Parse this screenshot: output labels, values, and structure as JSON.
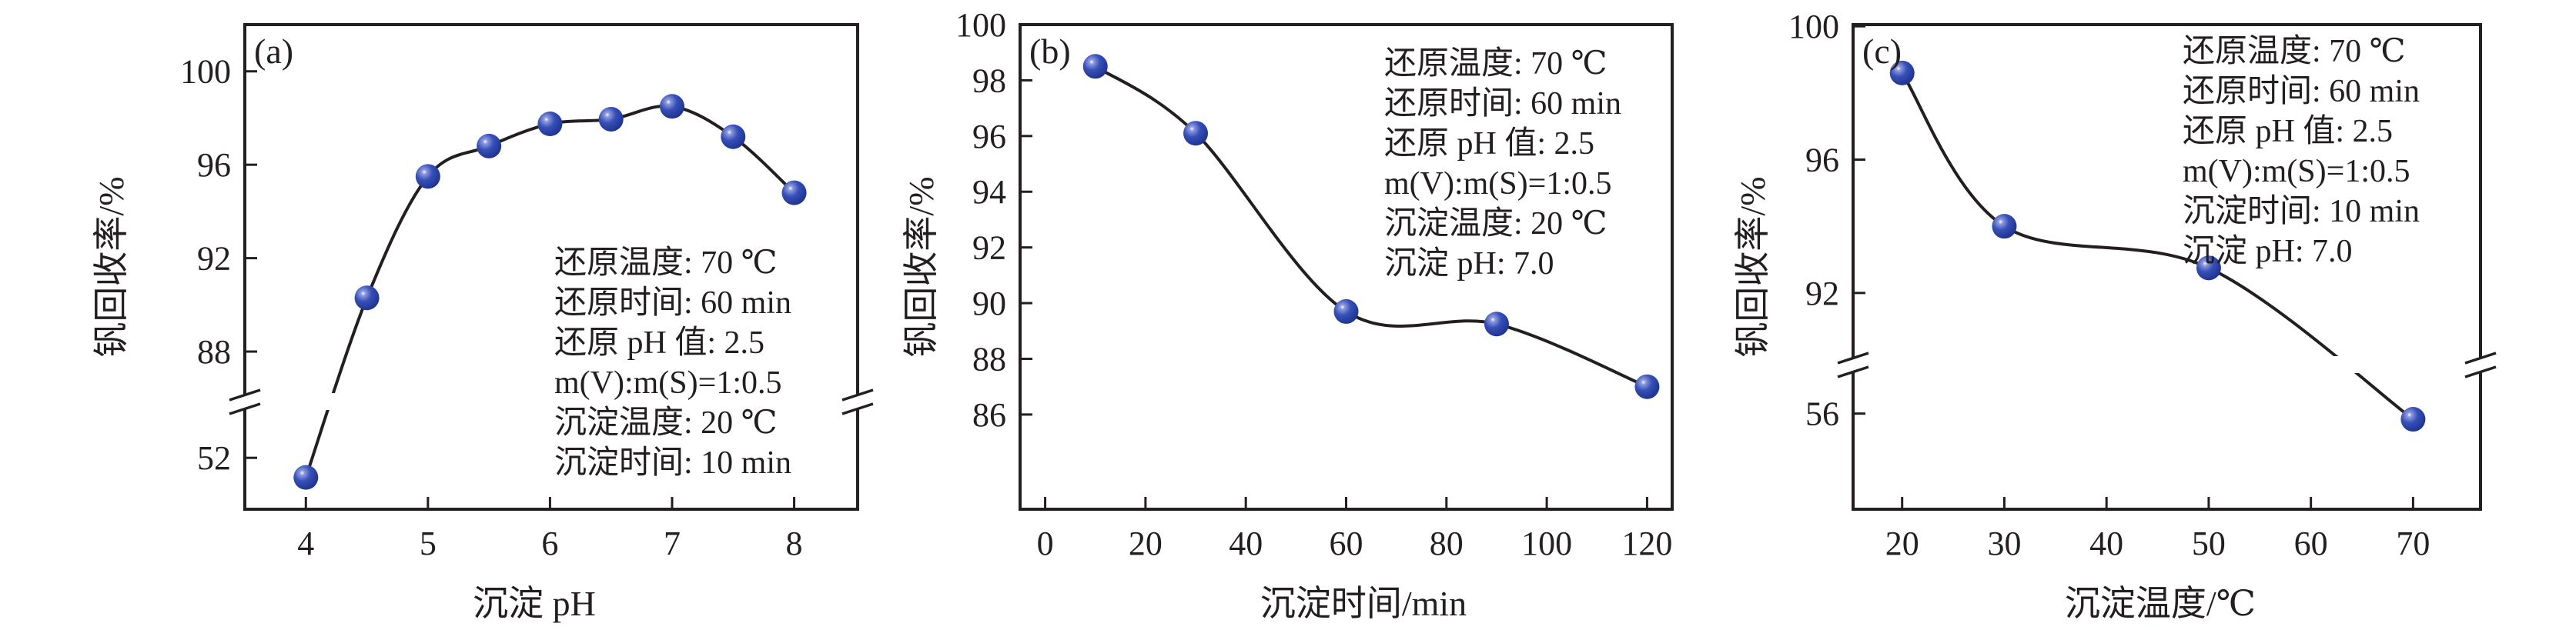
{
  "colors": {
    "marker": "#2e48b0",
    "line": "#231f20",
    "axis": "#231f20"
  },
  "chart_data": [
    {
      "type": "line",
      "panel_label": "(a)",
      "xlabel": "沉淀 pH",
      "ylabel": "钒回收率/%",
      "x": [
        4,
        4.5,
        5,
        5.5,
        6,
        6.5,
        7,
        7.5,
        8
      ],
      "y": [
        51.2,
        90.3,
        95.5,
        96.8,
        97.75,
        97.95,
        98.5,
        97.2,
        94.8
      ],
      "xticks": [
        "4",
        "5",
        "6",
        "7",
        "8"
      ],
      "yticks": [
        "52",
        "88",
        "92",
        "96",
        "100"
      ],
      "xlim": [
        3.5,
        8.52
      ],
      "axis_break": true,
      "ylim_lower": [
        49.9,
        54.3
      ],
      "ylim_upper": [
        85.86,
        102.0
      ],
      "annotations": [
        "还原温度: 70 ℃",
        "还原时间: 60 min",
        "还原 pH 值: 2.5",
        "m(V):m(S)=1:0.5",
        "沉淀温度: 20 ℃",
        "沉淀时间: 10 min"
      ]
    },
    {
      "type": "line",
      "panel_label": "(b)",
      "xlabel": "沉淀时间/min",
      "ylabel": "钒回收率/%",
      "x": [
        10,
        30,
        60,
        90,
        120
      ],
      "y": [
        98.5,
        96.1,
        89.7,
        89.25,
        87.0
      ],
      "xticks": [
        "0",
        "20",
        "40",
        "60",
        "80",
        "100",
        "120"
      ],
      "yticks": [
        "86",
        "88",
        "90",
        "92",
        "94",
        "96",
        "98",
        "100"
      ],
      "xlim": [
        -5,
        125
      ],
      "axis_break": false,
      "ylim": [
        82.6,
        100.0
      ],
      "annotations": [
        "还原温度: 70 ℃",
        "还原时间: 60 min",
        "还原 pH 值: 2.5",
        "m(V):m(S)=1:0.5",
        "沉淀温度: 20 ℃",
        "沉淀 pH: 7.0"
      ]
    },
    {
      "type": "line",
      "panel_label": "(c)",
      "xlabel": "沉淀温度/℃",
      "ylabel": "钒回收率/%",
      "x": [
        20,
        30,
        50,
        70
      ],
      "y": [
        98.6,
        94.0,
        92.75,
        55.75
      ],
      "xticks": [
        "20",
        "30",
        "40",
        "50",
        "60",
        "70"
      ],
      "yticks": [
        "56",
        "92",
        "96",
        "100"
      ],
      "xlim": [
        15.2,
        76.6
      ],
      "axis_break": true,
      "ylim_lower": [
        51.8,
        58.15
      ],
      "ylim_upper": [
        89.85,
        100.05
      ],
      "annotations": [
        "还原温度: 70 ℃",
        "还原时间: 60 min",
        "还原 pH 值: 2.5",
        "m(V):m(S)=1:0.5",
        "沉淀时间: 10 min",
        "沉淀 pH: 7.0"
      ]
    }
  ]
}
